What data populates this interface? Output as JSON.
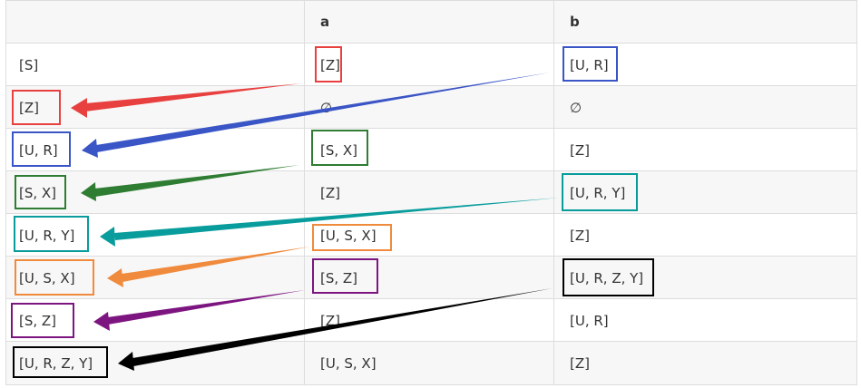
{
  "header": {
    "col0": "",
    "col1": "a",
    "col2": "b"
  },
  "rows": [
    {
      "state": "[S]",
      "a": "[Z]",
      "b": "[U, R]"
    },
    {
      "state": "[Z]",
      "a": "∅",
      "b": "∅"
    },
    {
      "state": "[U, R]",
      "a": "[S, X]",
      "b": "[Z]"
    },
    {
      "state": "[S, X]",
      "a": "[Z]",
      "b": "[U, R, Y]"
    },
    {
      "state": "[U, R, Y]",
      "a": "[U, S, X]",
      "b": "[Z]"
    },
    {
      "state": "[U, S, X]",
      "a": "[S, Z]",
      "b": "[U, R, Z, Y]"
    },
    {
      "state": "[S, Z]",
      "a": "[Z]",
      "b": "[U, R]"
    },
    {
      "state": "[U, R, Z, Y]",
      "a": "[U, S, X]",
      "b": "[Z]"
    }
  ],
  "colors": {
    "red": "#e8403f",
    "blue": "#3a55c5",
    "green": "#2e7d32",
    "teal": "#089c9c",
    "orange": "#f08a3c",
    "purple": "#7d1580",
    "black": "#000000"
  }
}
